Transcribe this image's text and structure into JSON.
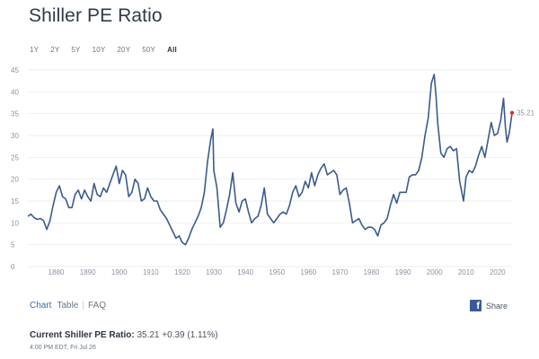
{
  "page": {
    "title": "Shiller PE Ratio",
    "range_tabs": [
      {
        "label": "1Y",
        "active": false
      },
      {
        "label": "2Y",
        "active": false
      },
      {
        "label": "5Y",
        "active": false
      },
      {
        "label": "10Y",
        "active": false
      },
      {
        "label": "20Y",
        "active": false
      },
      {
        "label": "50Y",
        "active": false
      },
      {
        "label": "All",
        "active": true
      }
    ],
    "view_tabs": [
      {
        "label": "Chart",
        "active": true
      },
      {
        "label": "Table",
        "active": false
      },
      {
        "label": "FAQ",
        "active": false
      }
    ],
    "view_separator": "|",
    "share": {
      "icon_glyph": "f",
      "label": "Share"
    },
    "current": {
      "label": "Current Shiller PE Ratio:",
      "value": "35.21",
      "change": "+0.39 (1.11%)",
      "timestamp": "4:00 PM EDT, Fri Jul 26"
    },
    "colors": {
      "line": "#3b5b8c",
      "marker": "#d9342b",
      "gridline": "#e6e9ed",
      "tick_text": "#8a94a0",
      "facebook": "#3b5998"
    }
  },
  "chart_data": {
    "type": "line",
    "title": "",
    "xlabel": "",
    "ylabel": "",
    "x_range": [
      1871,
      2024.6
    ],
    "ylim": [
      0,
      45
    ],
    "yticks": [
      0,
      5,
      10,
      15,
      20,
      25,
      30,
      35,
      40,
      45
    ],
    "xticks": [
      1880,
      1890,
      1900,
      1910,
      1920,
      1930,
      1940,
      1950,
      1960,
      1970,
      1980,
      1990,
      2000,
      2010,
      2020
    ],
    "grid": "horizontal",
    "last_point_label": "35.21",
    "series": [
      {
        "x": [
          1871,
          1872,
          1873,
          1874,
          1875,
          1876,
          1877,
          1878,
          1879,
          1880,
          1881,
          1882,
          1883,
          1884,
          1885,
          1886,
          1887,
          1888,
          1889,
          1890,
          1891,
          1892,
          1893,
          1894,
          1895,
          1896,
          1897,
          1898,
          1899,
          1900,
          1901,
          1902,
          1903,
          1904,
          1905,
          1906,
          1907,
          1908,
          1909,
          1910,
          1911,
          1912,
          1913,
          1914,
          1915,
          1916,
          1917,
          1918,
          1919,
          1920,
          1921,
          1922,
          1923,
          1924,
          1925,
          1926,
          1927,
          1928,
          1929,
          1929.7,
          1930,
          1931,
          1932,
          1933,
          1934,
          1935,
          1936,
          1937,
          1938,
          1939,
          1940,
          1941,
          1942,
          1943,
          1944,
          1945,
          1946,
          1947,
          1948,
          1949,
          1950,
          1951,
          1952,
          1953,
          1954,
          1955,
          1956,
          1957,
          1958,
          1959,
          1960,
          1961,
          1962,
          1963,
          1964,
          1965,
          1966,
          1967,
          1968,
          1969,
          1970,
          1971,
          1972,
          1973,
          1974,
          1975,
          1976,
          1977,
          1978,
          1979,
          1980,
          1981,
          1982,
          1983,
          1984,
          1985,
          1986,
          1987,
          1988,
          1989,
          1990,
          1991,
          1992,
          1993,
          1994,
          1995,
          1996,
          1997,
          1998,
          1999,
          1999.9,
          2000.5,
          2001,
          2002,
          2003,
          2004,
          2005,
          2006,
          2007,
          2008,
          2009.2,
          2010,
          2011,
          2012,
          2013,
          2014,
          2015,
          2016,
          2017,
          2018,
          2019,
          2020,
          2021,
          2021.9,
          2022.5,
          2023,
          2023.7,
          2024,
          2024.6
        ],
        "values": [
          11.5,
          12.0,
          11.2,
          10.8,
          11.0,
          10.5,
          8.5,
          10.5,
          14.0,
          17.0,
          18.5,
          16.0,
          15.5,
          13.5,
          13.5,
          16.5,
          17.5,
          15.5,
          17.5,
          16.0,
          15.0,
          19.0,
          16.5,
          16.0,
          18.0,
          17.0,
          19.0,
          21.0,
          23.0,
          19.0,
          22.0,
          21.0,
          16.0,
          17.0,
          20.0,
          19.0,
          15.0,
          15.5,
          18.0,
          16.0,
          15.0,
          15.0,
          13.0,
          12.0,
          11.0,
          9.5,
          8.0,
          6.5,
          7.0,
          5.5,
          5.0,
          6.5,
          8.5,
          10.0,
          11.5,
          13.5,
          17.0,
          24.0,
          29.0,
          31.5,
          22.0,
          18.0,
          9.0,
          10.0,
          13.0,
          16.5,
          21.5,
          14.5,
          12.5,
          15.0,
          15.5,
          12.5,
          10.0,
          11.0,
          11.5,
          14.0,
          18.0,
          12.0,
          11.0,
          10.0,
          11.0,
          12.0,
          12.5,
          12.0,
          14.0,
          17.0,
          18.5,
          16.0,
          17.0,
          19.5,
          18.0,
          21.5,
          18.5,
          21.0,
          22.5,
          23.5,
          21.0,
          21.5,
          22.0,
          21.0,
          16.5,
          17.5,
          18.0,
          14.5,
          10.0,
          10.5,
          11.0,
          9.5,
          8.5,
          9.0,
          9.0,
          8.5,
          7.0,
          9.5,
          10.0,
          11.0,
          14.0,
          16.5,
          14.5,
          17.0,
          17.0,
          17.0,
          20.5,
          21.0,
          21.0,
          22.0,
          25.0,
          30.0,
          34.0,
          42.0,
          44.0,
          39.0,
          33.0,
          26.0,
          25.0,
          27.0,
          27.5,
          26.5,
          27.0,
          19.5,
          15.0,
          20.5,
          22.0,
          21.5,
          23.0,
          25.5,
          27.5,
          25.0,
          29.0,
          33.0,
          30.0,
          30.5,
          33.5,
          38.5,
          32.0,
          28.5,
          30.5,
          32.0,
          35.21
        ]
      }
    ]
  }
}
